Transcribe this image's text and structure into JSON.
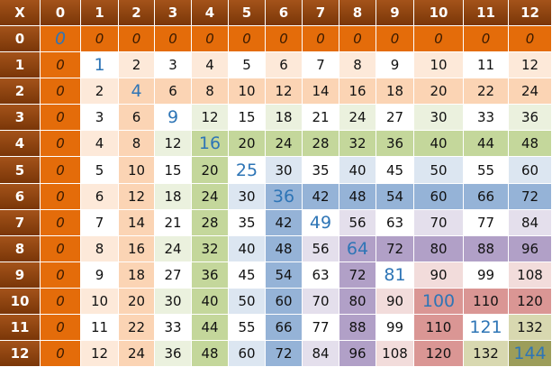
{
  "table": {
    "corner": "X",
    "columns": [
      0,
      1,
      2,
      3,
      4,
      5,
      6,
      7,
      8,
      9,
      10,
      11,
      12
    ],
    "rows": [
      {
        "label": 0,
        "cells": [
          0,
          0,
          0,
          0,
          0,
          0,
          0,
          0,
          0,
          0,
          0,
          0,
          0
        ]
      },
      {
        "label": 1,
        "cells": [
          0,
          1,
          2,
          3,
          4,
          5,
          6,
          7,
          8,
          9,
          10,
          11,
          12
        ]
      },
      {
        "label": 2,
        "cells": [
          0,
          2,
          4,
          6,
          8,
          10,
          12,
          14,
          16,
          18,
          20,
          22,
          24
        ]
      },
      {
        "label": 3,
        "cells": [
          0,
          3,
          6,
          9,
          12,
          15,
          18,
          21,
          24,
          27,
          30,
          33,
          36
        ]
      },
      {
        "label": 4,
        "cells": [
          0,
          4,
          8,
          12,
          16,
          20,
          24,
          28,
          32,
          36,
          40,
          44,
          48
        ]
      },
      {
        "label": 5,
        "cells": [
          0,
          5,
          10,
          15,
          20,
          25,
          30,
          35,
          40,
          45,
          50,
          55,
          60
        ]
      },
      {
        "label": 6,
        "cells": [
          0,
          6,
          12,
          18,
          24,
          30,
          36,
          42,
          48,
          54,
          60,
          66,
          72
        ]
      },
      {
        "label": 7,
        "cells": [
          0,
          7,
          14,
          21,
          28,
          35,
          42,
          49,
          56,
          63,
          70,
          77,
          84
        ]
      },
      {
        "label": 8,
        "cells": [
          0,
          8,
          16,
          24,
          32,
          40,
          48,
          56,
          64,
          72,
          80,
          88,
          96
        ]
      },
      {
        "label": 9,
        "cells": [
          0,
          9,
          18,
          27,
          36,
          45,
          54,
          63,
          72,
          81,
          90,
          99,
          108
        ]
      },
      {
        "label": 10,
        "cells": [
          0,
          10,
          20,
          30,
          40,
          50,
          60,
          70,
          80,
          90,
          100,
          110,
          120
        ]
      },
      {
        "label": 11,
        "cells": [
          0,
          11,
          22,
          33,
          44,
          55,
          66,
          77,
          88,
          99,
          110,
          121,
          132
        ]
      },
      {
        "label": 12,
        "cells": [
          0,
          12,
          24,
          36,
          48,
          60,
          72,
          84,
          96,
          108,
          120,
          132,
          144
        ]
      }
    ]
  }
}
